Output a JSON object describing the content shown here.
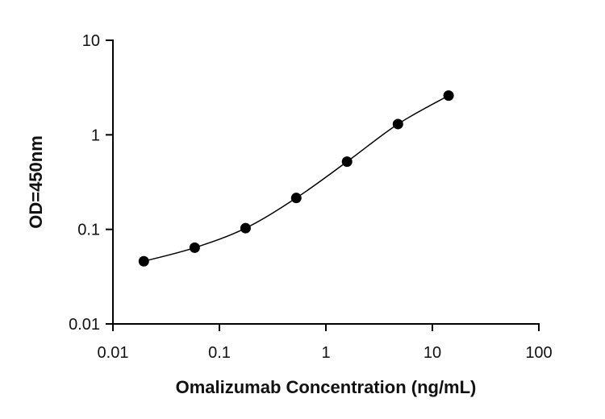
{
  "chart_data": {
    "type": "scatter",
    "title": "",
    "xlabel": "Omalizumab Concentration (ng/mL)",
    "ylabel": "OD=450nm",
    "xscale": "log",
    "yscale": "log",
    "xlim": [
      0.01,
      100
    ],
    "ylim": [
      0.01,
      10
    ],
    "xticks": [
      0.01,
      0.1,
      1,
      10,
      100
    ],
    "xtick_labels": [
      "0.01",
      "0.1",
      "1",
      "10",
      "100"
    ],
    "yticks": [
      0.01,
      0.1,
      1,
      10
    ],
    "ytick_labels": [
      "0.01",
      "0.1",
      "1",
      "10"
    ],
    "grid": false,
    "legend": "none",
    "fit_curve": true,
    "series": [
      {
        "x": [
          0.0195,
          0.0586,
          0.176,
          0.527,
          1.58,
          4.75,
          14.2
        ],
        "y": [
          0.046,
          0.064,
          0.103,
          0.215,
          0.52,
          1.3,
          2.6
        ]
      }
    ],
    "colors": {
      "marker": "#000000",
      "curve": "#000000",
      "axis": "#000000"
    }
  }
}
